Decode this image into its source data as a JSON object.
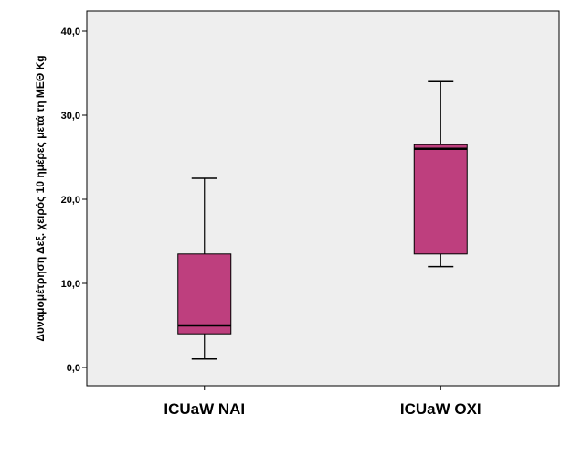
{
  "chart_data": {
    "type": "boxplot",
    "title": "",
    "xlabel": "",
    "ylabel": "Δυναμομέτρηση Δεξ. χειρός 10 ημέρες μετά τη ΜΕΘ Kg",
    "ylim": [
      -2,
      42
    ],
    "y_ticks": [
      0,
      10,
      20,
      30,
      40
    ],
    "y_tick_labels": [
      "0,0",
      "10,0",
      "20,0",
      "30,0",
      "40,0"
    ],
    "categories": [
      "ICUaW NAI",
      "ICUaW OXI"
    ],
    "boxes": [
      {
        "category": "ICUaW NAI",
        "min": 1.0,
        "q1": 4.0,
        "median": 5.0,
        "q3": 13.5,
        "max": 22.5
      },
      {
        "category": "ICUaW OXI",
        "min": 12.0,
        "q1": 13.5,
        "median": 26.0,
        "q3": 26.5,
        "max": 34.0
      }
    ],
    "grid": false,
    "colors": {
      "box_fill": "#BE3F7E",
      "plot_background": "#EEEEEE",
      "line": "#000000"
    }
  }
}
